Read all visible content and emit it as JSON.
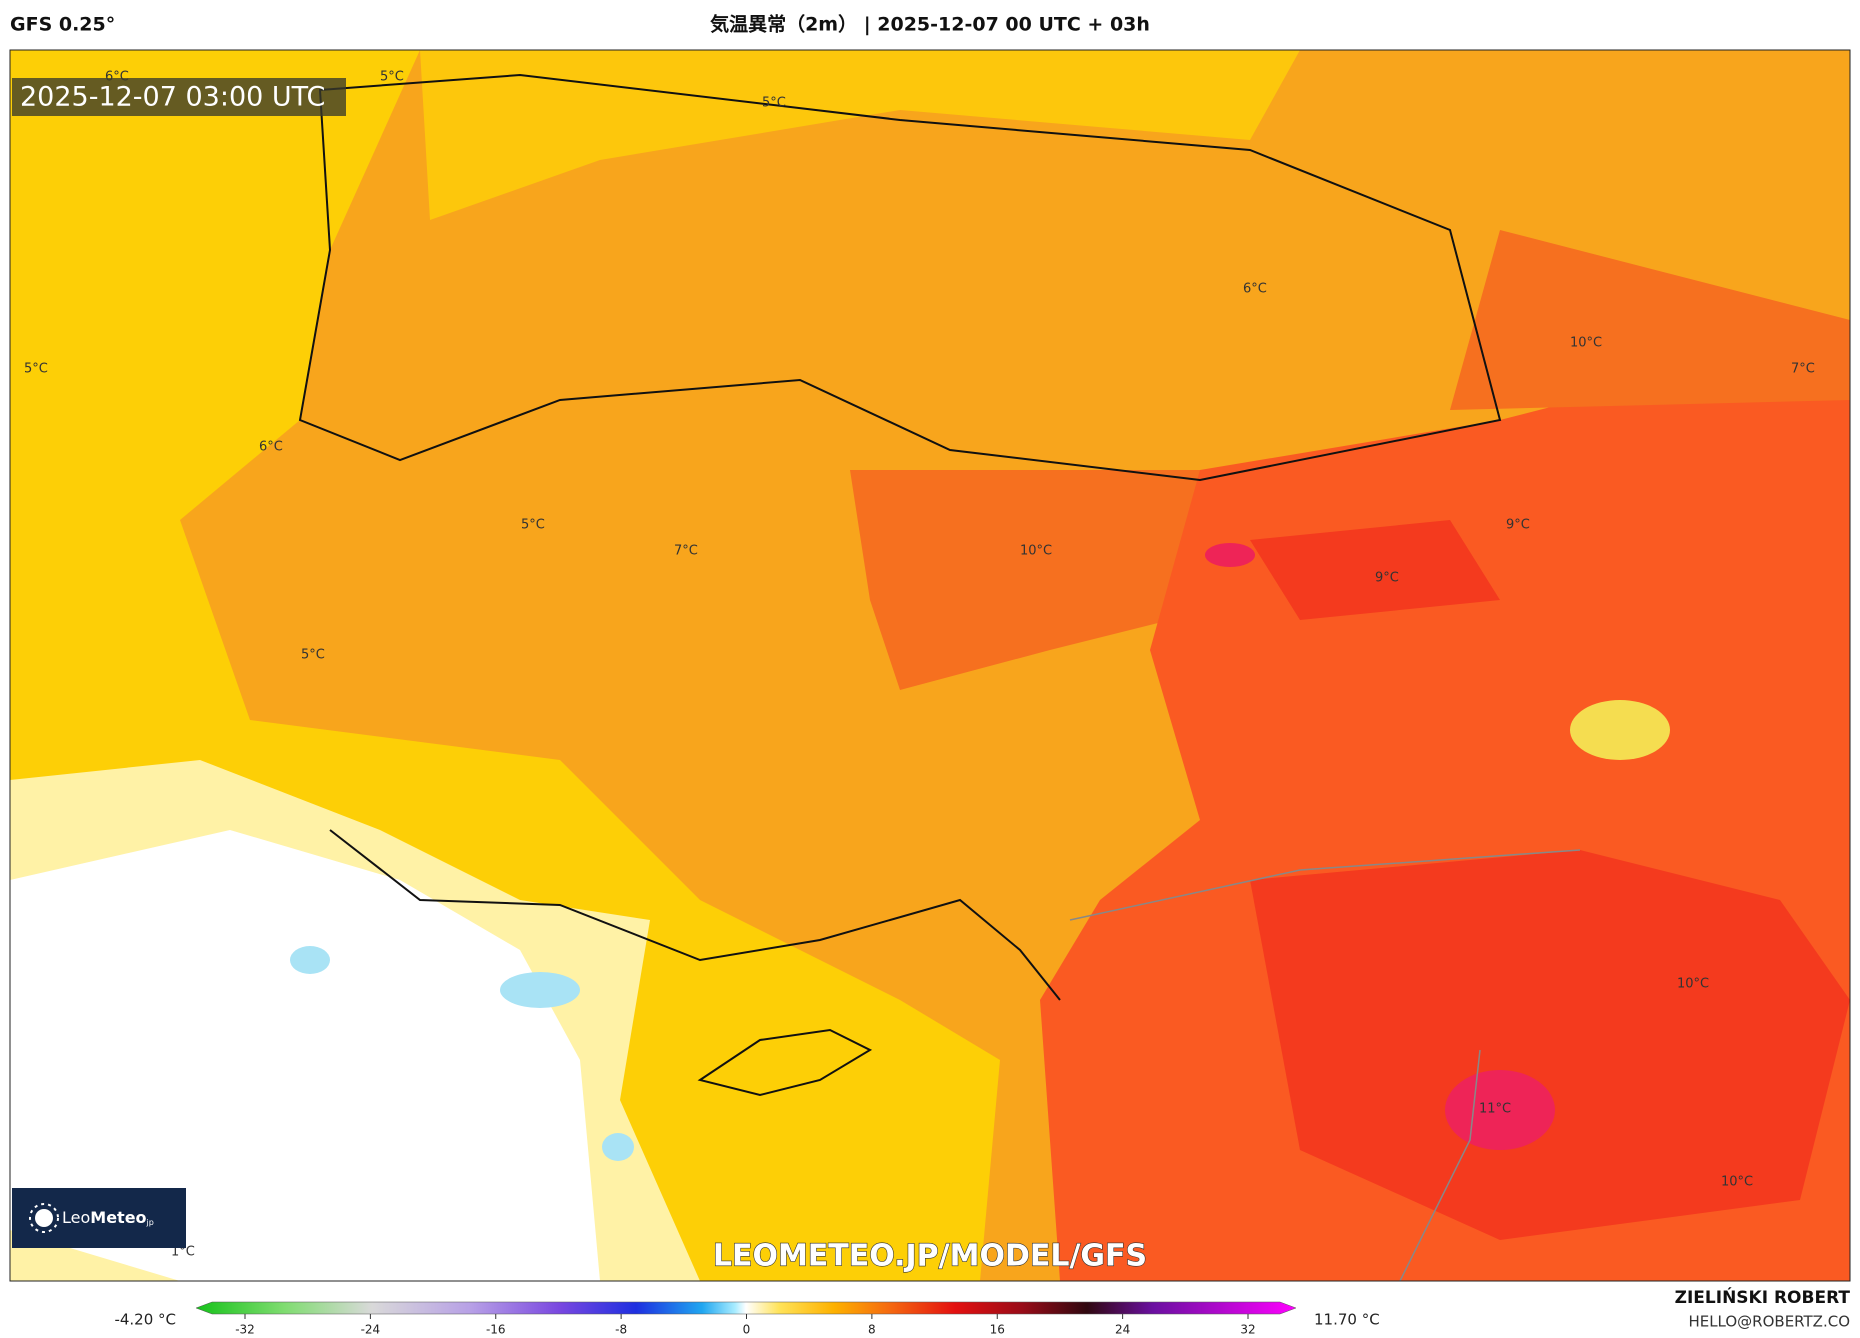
{
  "header": {
    "model": "GFS 0.25°",
    "title": "気温異常（2m） | 2025-12-07 00 UTC + 03h"
  },
  "map": {
    "timestamp": "2025-12-07 03:00 UTC",
    "watermark": "LEOMETEO.JP/MODEL/GFS",
    "logo": {
      "light": "Leo",
      "bold": "Meteo",
      "suffix": "jp"
    },
    "labels": [
      "5°C",
      "6°C",
      "5°C",
      "6°C",
      "10°C",
      "7°C",
      "5°C",
      "6°C",
      "5°C",
      "7°C",
      "10°C",
      "9°C",
      "9°C",
      "5°C",
      "10°C",
      "11°C",
      "10°C",
      "1°C"
    ]
  },
  "colorbar": {
    "min_label": "-4.20 °C",
    "max_label": "11.70 °C",
    "ticks": [
      -32,
      -24,
      -16,
      -8,
      0,
      8,
      16,
      24,
      32
    ]
  },
  "credit": {
    "name": "ZIELIŃSKI ROBERT",
    "email": "HELLO@ROBERTZ.CO"
  }
}
